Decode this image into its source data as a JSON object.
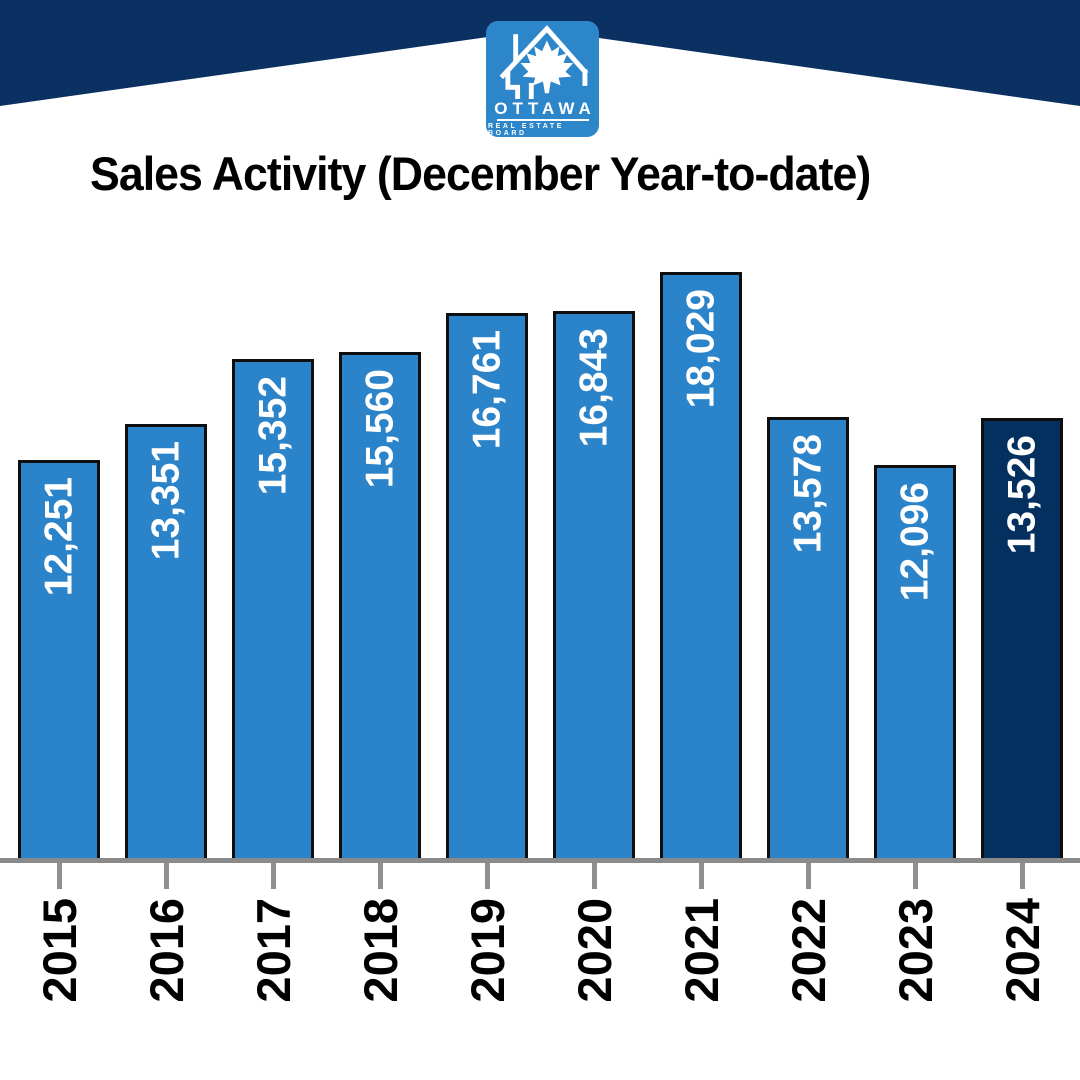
{
  "logo": {
    "org": "OTTAWA",
    "tagline": "REAL ESTATE BOARD",
    "box_color": "#2e86ca"
  },
  "banner": {
    "color": "#0a3161"
  },
  "title": "Sales Activity (December Year-to-date)",
  "chart_data": {
    "type": "bar",
    "title": "Sales Activity (December Year-to-date)",
    "categories": [
      "2015",
      "2016",
      "2017",
      "2018",
      "2019",
      "2020",
      "2021",
      "2022",
      "2023",
      "2024"
    ],
    "values": [
      12251,
      13351,
      15352,
      15560,
      16761,
      16843,
      18029,
      13578,
      12096,
      13526
    ],
    "value_labels": [
      "12,251",
      "13,351",
      "15,352",
      "15,560",
      "16,761",
      "16,843",
      "18,029",
      "13,578",
      "12,096",
      "13,526"
    ],
    "xlabel": "",
    "ylabel": "",
    "ylim": [
      0,
      18029
    ],
    "grid": false,
    "legend": "none",
    "bar_color": "#2b83c9",
    "highlight_color": "#04305f",
    "highlight_index": 9,
    "bar_border_color": "#0e0e0e",
    "axis_color": "#8a8a8a",
    "value_label_color": "#ffffff",
    "label_orientation": "vertical-bottom-to-top"
  }
}
